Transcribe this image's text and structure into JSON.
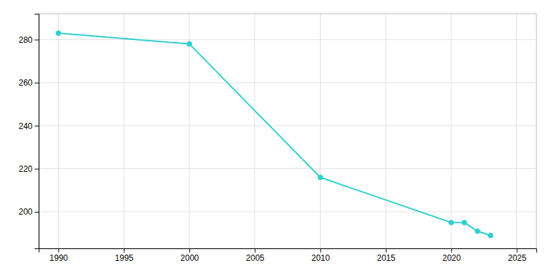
{
  "chart_data": {
    "type": "line",
    "x": [
      1990,
      2000,
      2010,
      2020,
      2021,
      2022,
      2023
    ],
    "values": [
      283,
      278,
      216,
      195,
      195,
      191,
      189
    ],
    "color": "#2ECFCF",
    "marker": "circle",
    "xlim": [
      1988.5,
      2026.5
    ],
    "ylim": [
      183,
      292
    ],
    "xticks": [
      1990,
      1995,
      2000,
      2005,
      2010,
      2015,
      2020,
      2025
    ],
    "yticks": [
      200,
      220,
      240,
      260,
      280
    ],
    "grid": true
  }
}
